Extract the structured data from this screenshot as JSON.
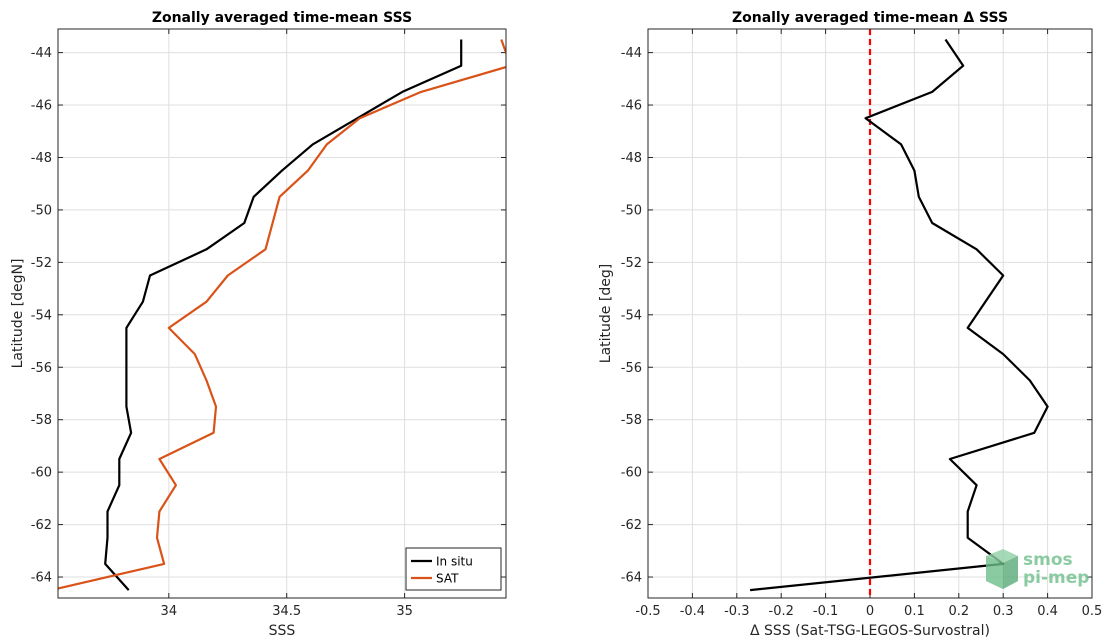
{
  "chart_data": [
    {
      "type": "line",
      "title": "Zonally averaged time-mean SSS",
      "xlabel": "SSS",
      "ylabel": "Latitude [degN]",
      "xlim": [
        33.53,
        35.43
      ],
      "ylim": [
        -64.8,
        -43.1
      ],
      "xticks": [
        34,
        34.5,
        35
      ],
      "xtick_labels": [
        "34",
        "34.5",
        "35"
      ],
      "yticks": [
        -64,
        -62,
        -60,
        -58,
        -56,
        -54,
        -52,
        -50,
        -48,
        -46,
        -44
      ],
      "ytick_labels": [
        "-64",
        "-62",
        "-60",
        "-58",
        "-56",
        "-54",
        "-52",
        "-50",
        "-48",
        "-46",
        "-44"
      ],
      "grid": true,
      "legend": {
        "position": "bottom-right",
        "entries": [
          "In situ",
          "SAT"
        ]
      },
      "series": [
        {
          "name": "In situ",
          "color": "#000000",
          "points": [
            [
              35.24,
              -43.5
            ],
            [
              35.24,
              -44.5
            ],
            [
              34.99,
              -45.5
            ],
            [
              34.8,
              -46.5
            ],
            [
              34.61,
              -47.5
            ],
            [
              34.48,
              -48.5
            ],
            [
              34.36,
              -49.5
            ],
            [
              34.32,
              -50.5
            ],
            [
              34.16,
              -51.5
            ],
            [
              33.92,
              -52.5
            ],
            [
              33.89,
              -53.5
            ],
            [
              33.82,
              -54.5
            ],
            [
              33.82,
              -55.5
            ],
            [
              33.82,
              -56.5
            ],
            [
              33.82,
              -57.5
            ],
            [
              33.84,
              -58.5
            ],
            [
              33.79,
              -59.5
            ],
            [
              33.79,
              -60.5
            ],
            [
              33.74,
              -61.5
            ],
            [
              33.74,
              -62.5
            ],
            [
              33.73,
              -63.5
            ],
            [
              33.83,
              -64.5
            ]
          ]
        },
        {
          "name": "SAT",
          "color": "#d95319",
          "points": [
            [
              35.41,
              -43.5
            ],
            [
              35.45,
              -44.5
            ],
            [
              35.07,
              -45.5
            ],
            [
              34.81,
              -46.5
            ],
            [
              34.67,
              -47.5
            ],
            [
              34.59,
              -48.5
            ],
            [
              34.47,
              -49.5
            ],
            [
              34.44,
              -50.5
            ],
            [
              34.41,
              -51.5
            ],
            [
              34.25,
              -52.5
            ],
            [
              34.16,
              -53.5
            ],
            [
              34.0,
              -54.5
            ],
            [
              34.11,
              -55.5
            ],
            [
              34.16,
              -56.5
            ],
            [
              34.2,
              -57.5
            ],
            [
              34.19,
              -58.5
            ],
            [
              33.96,
              -59.5
            ],
            [
              34.03,
              -60.5
            ],
            [
              33.96,
              -61.5
            ],
            [
              33.95,
              -62.5
            ],
            [
              33.98,
              -63.5
            ],
            [
              33.5,
              -64.5
            ]
          ]
        }
      ]
    },
    {
      "type": "line",
      "title": "Zonally averaged time-mean Δ SSS",
      "xlabel": "Δ SSS (Sat-TSG-LEGOS-Survostral)",
      "ylabel": "Latitude [deg]",
      "xlim": [
        -0.5,
        0.5
      ],
      "ylim": [
        -64.8,
        -43.1
      ],
      "xticks": [
        -0.5,
        -0.4,
        -0.3,
        -0.2,
        -0.1,
        0,
        0.1,
        0.2,
        0.3,
        0.4,
        0.5
      ],
      "xtick_labels": [
        "-0.5",
        "-0.4",
        "-0.3",
        "-0.2",
        "-0.1",
        "0",
        "0.1",
        "0.2",
        "0.3",
        "0.4",
        "0.5"
      ],
      "yticks": [
        -64,
        -62,
        -60,
        -58,
        -56,
        -54,
        -52,
        -50,
        -48,
        -46,
        -44
      ],
      "ytick_labels": [
        "-64",
        "-62",
        "-60",
        "-58",
        "-56",
        "-54",
        "-52",
        "-50",
        "-48",
        "-46",
        "-44"
      ],
      "grid": true,
      "reference_line": {
        "x": 0,
        "color": "#ff0000",
        "style": "dashed"
      },
      "series": [
        {
          "color": "#000000",
          "points": [
            [
              0.17,
              -43.5
            ],
            [
              0.21,
              -44.5
            ],
            [
              0.14,
              -45.5
            ],
            [
              -0.01,
              -46.5
            ],
            [
              0.07,
              -47.5
            ],
            [
              0.1,
              -48.5
            ],
            [
              0.11,
              -49.5
            ],
            [
              0.14,
              -50.5
            ],
            [
              0.24,
              -51.5
            ],
            [
              0.3,
              -52.5
            ],
            [
              0.26,
              -53.5
            ],
            [
              0.22,
              -54.5
            ],
            [
              0.3,
              -55.5
            ],
            [
              0.36,
              -56.5
            ],
            [
              0.4,
              -57.5
            ],
            [
              0.37,
              -58.5
            ],
            [
              0.18,
              -59.5
            ],
            [
              0.24,
              -60.5
            ],
            [
              0.22,
              -61.5
            ],
            [
              0.22,
              -62.5
            ],
            [
              0.3,
              -63.5
            ],
            [
              -0.27,
              -64.5
            ]
          ]
        }
      ]
    }
  ],
  "watermark": {
    "line1": "smos",
    "line2": "pi-mep",
    "color": "#6fbf8c"
  }
}
